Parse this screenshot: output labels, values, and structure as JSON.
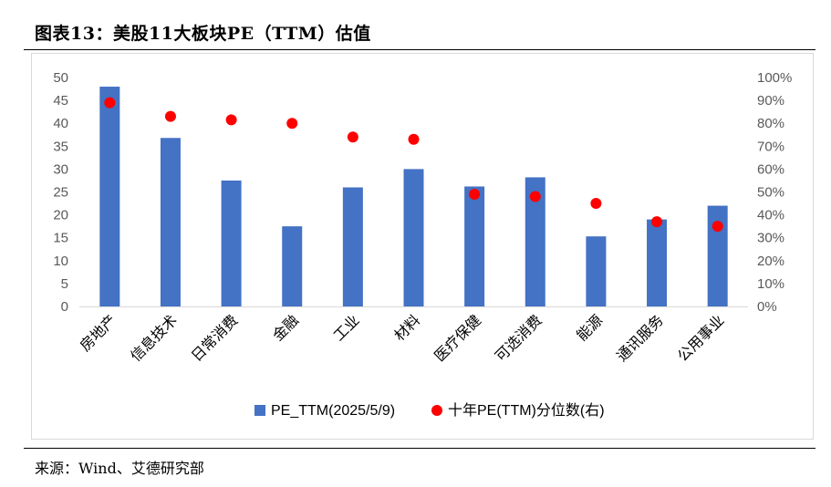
{
  "header": {
    "title": "图表13：美股11大板块PE（TTM）估值"
  },
  "footer": {
    "source": "来源：Wind、艾德研究部"
  },
  "chart_data": {
    "type": "bar",
    "categories": [
      "房地产",
      "信息技术",
      "日常消费",
      "金融",
      "工业",
      "材料",
      "医疗保健",
      "可选消费",
      "能源",
      "通讯服务",
      "公用事业"
    ],
    "series": [
      {
        "name": "PE_TTM(2025/5/9)",
        "kind": "bar",
        "axis": "left",
        "color": "#4472C4",
        "values": [
          48.0,
          36.8,
          27.5,
          17.5,
          26.0,
          30.0,
          26.2,
          28.2,
          15.3,
          19.0,
          22.0
        ]
      },
      {
        "name": "十年PE(TTM)分位数(右)",
        "kind": "scatter",
        "axis": "right",
        "color": "#FF0000",
        "values": [
          89,
          83,
          81.5,
          80,
          74,
          73,
          49,
          48,
          45,
          37,
          35
        ]
      }
    ],
    "y_left": {
      "min": 0,
      "max": 50,
      "step": 5,
      "ticks": [
        "0",
        "5",
        "10",
        "15",
        "20",
        "25",
        "30",
        "35",
        "40",
        "45",
        "50"
      ]
    },
    "y_right": {
      "min": 0,
      "max": 100,
      "step": 10,
      "ticks": [
        "0%",
        "10%",
        "20%",
        "30%",
        "40%",
        "50%",
        "60%",
        "70%",
        "80%",
        "90%",
        "100%"
      ]
    },
    "legend": {
      "position": "bottom"
    },
    "grid": false
  }
}
